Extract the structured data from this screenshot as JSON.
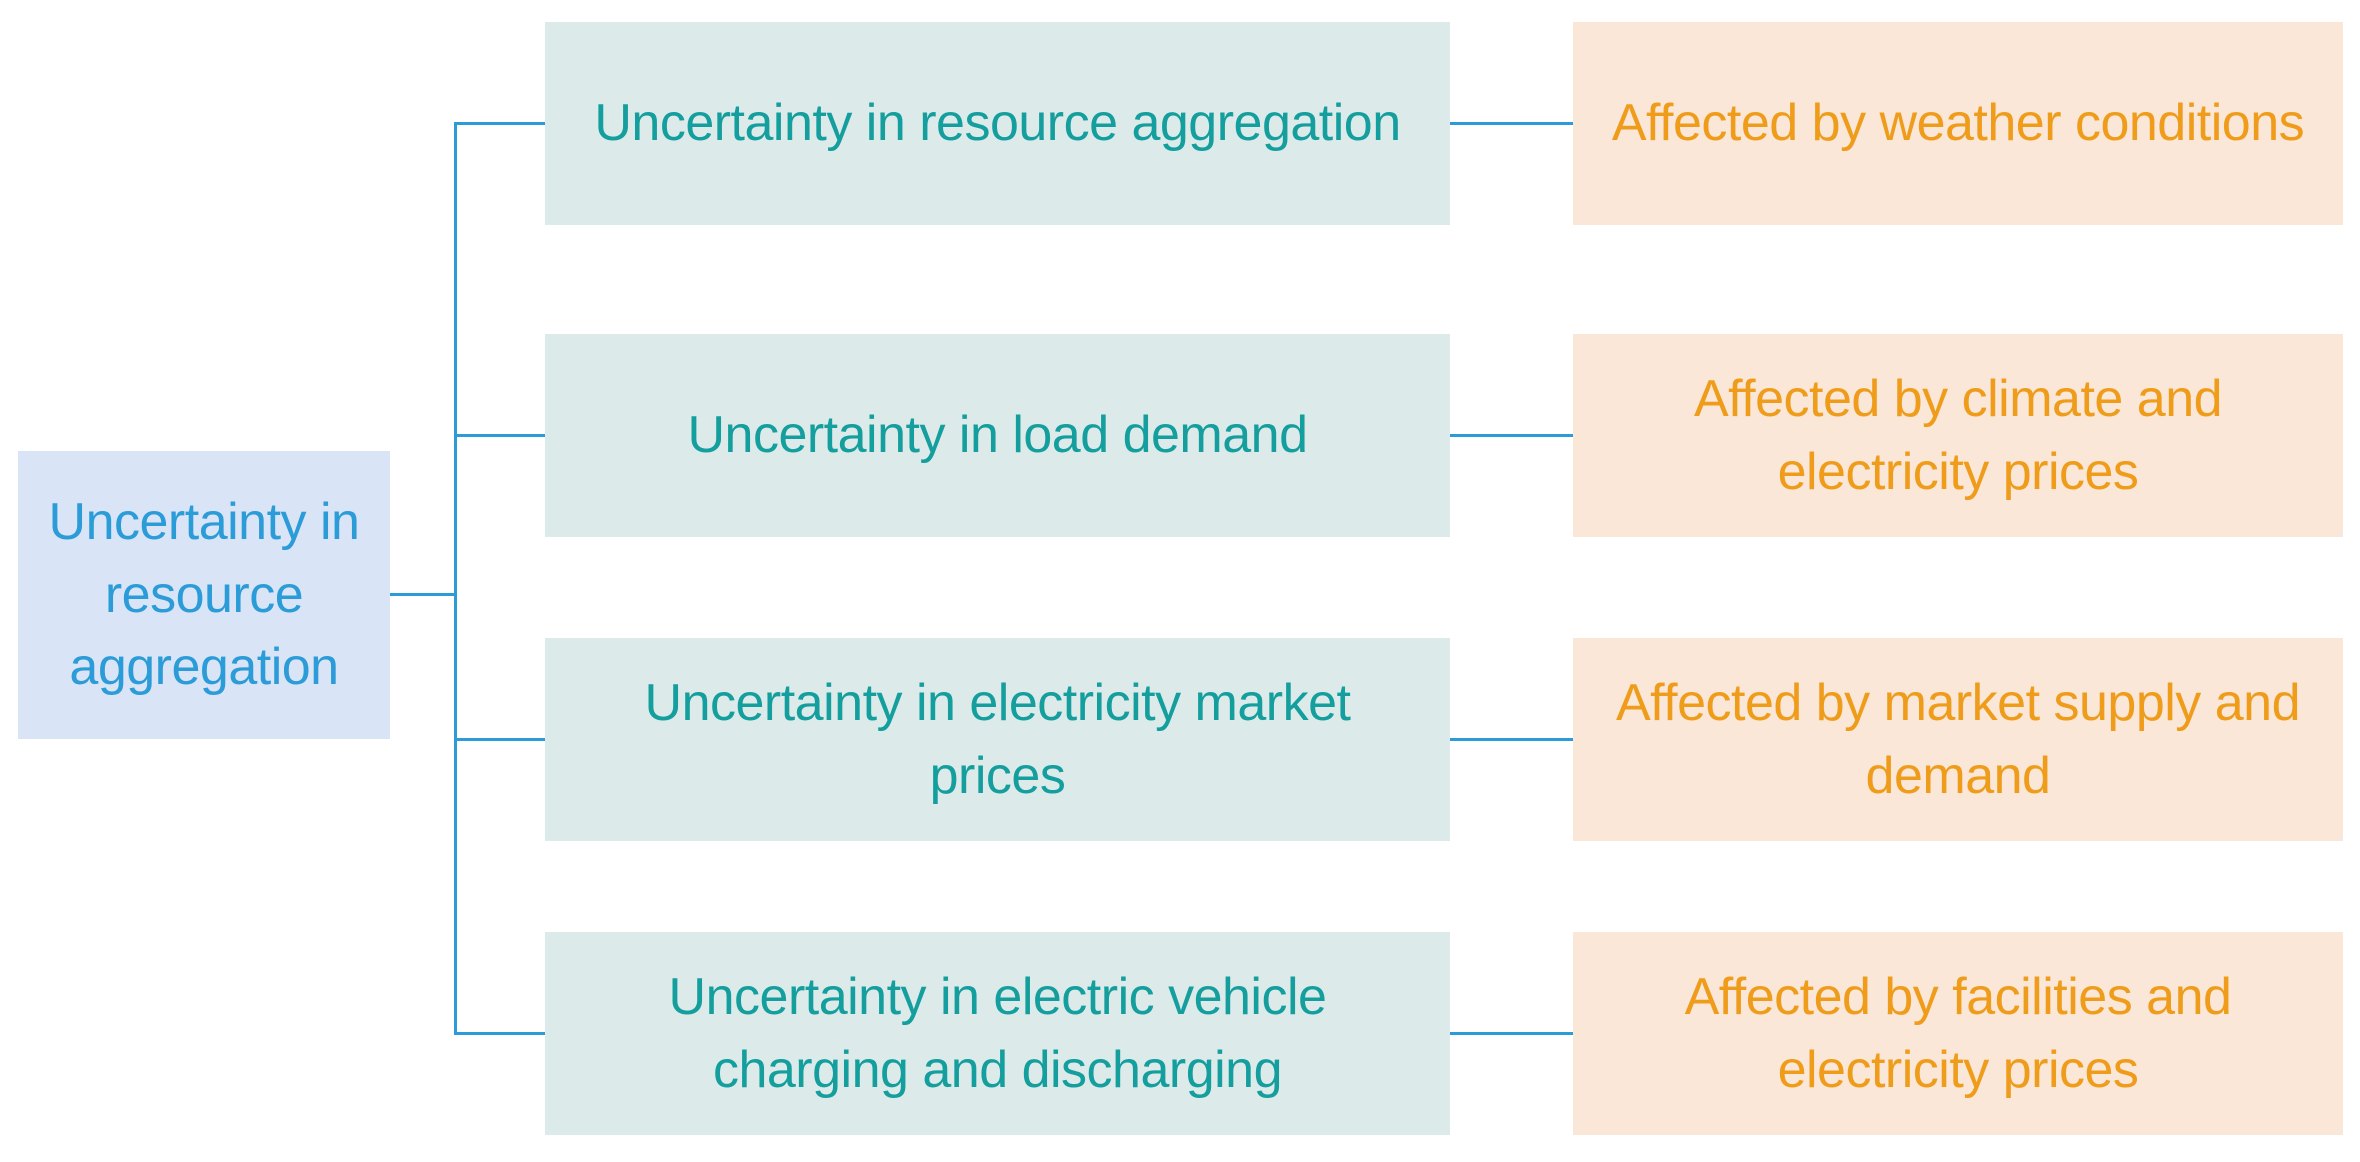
{
  "diagram": {
    "root_label": "Uncertainty in resource aggregation",
    "branches": [
      {
        "cause": "Uncertainty in resource aggregation",
        "effect": "Affected by weather conditions"
      },
      {
        "cause": "Uncertainty in load demand",
        "effect": "Affected by climate and electricity prices"
      },
      {
        "cause": "Uncertainty in electricity market prices",
        "effect": "Affected by market supply and demand"
      },
      {
        "cause": "Uncertainty in electric vehicle charging and discharging",
        "effect": "Affected by facilities and electricity prices"
      }
    ],
    "colors": {
      "root_fill": "#d9e5f6",
      "root_text": "#2b9cd8",
      "cause_fill": "#dcebe9",
      "cause_text": "#149e9e",
      "effect_fill": "#fae7d7",
      "effect_text": "#ef9c1a",
      "connector_line": "#2b9cd8",
      "background": "#ffffff"
    }
  }
}
